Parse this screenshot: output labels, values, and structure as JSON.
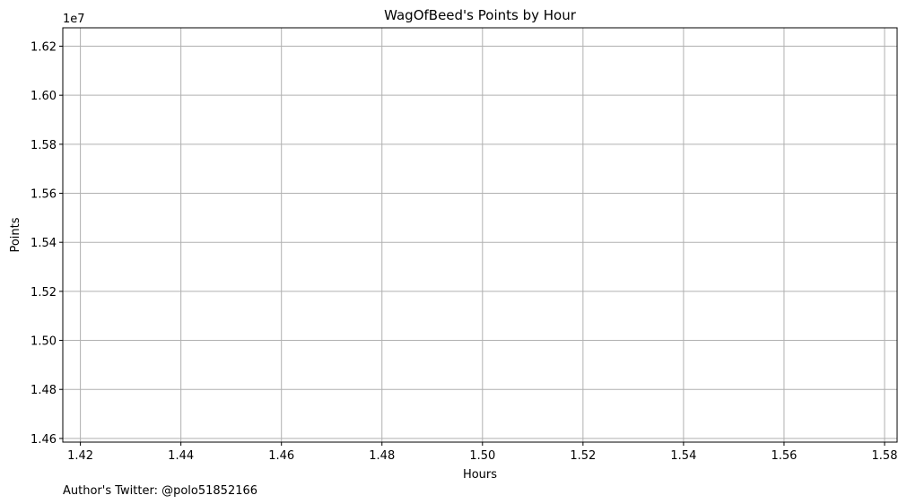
{
  "chart_data": {
    "type": "line",
    "title": "WagOfBeed's Points by Hour",
    "xlabel": "Hours",
    "ylabel": "Points",
    "y_offset_label": "1e7",
    "xlim": [
      1.4165,
      1.5825
    ],
    "ylim": [
      1.4585,
      1.6275
    ],
    "x_ticks": [
      1.42,
      1.44,
      1.46,
      1.48,
      1.5,
      1.52,
      1.54,
      1.56,
      1.58
    ],
    "x_tick_labels": [
      "1.42",
      "1.44",
      "1.46",
      "1.48",
      "1.50",
      "1.52",
      "1.54",
      "1.56",
      "1.58"
    ],
    "y_ticks": [
      1.46,
      1.48,
      1.5,
      1.52,
      1.54,
      1.56,
      1.58,
      1.6,
      1.62
    ],
    "y_tick_labels": [
      "1.46",
      "1.48",
      "1.50",
      "1.52",
      "1.54",
      "1.56",
      "1.58",
      "1.60",
      "1.62"
    ],
    "grid": true,
    "series": []
  },
  "footer": {
    "caption": "Author's Twitter: @polo51852166"
  },
  "colors": {
    "grid": "#b0b0b0",
    "axes": "#000000",
    "background": "#ffffff"
  }
}
